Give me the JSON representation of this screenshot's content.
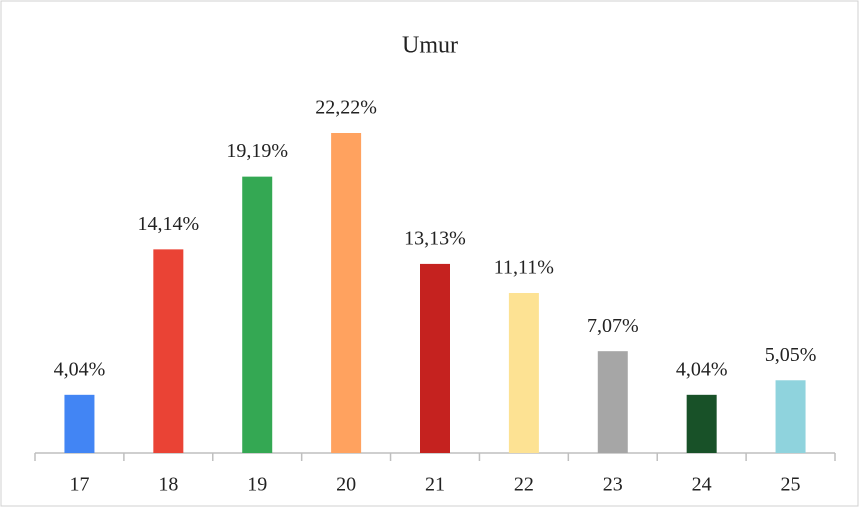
{
  "chart_data": {
    "type": "bar",
    "title": "Umur",
    "categories": [
      "17",
      "18",
      "19",
      "20",
      "21",
      "22",
      "23",
      "24",
      "25"
    ],
    "values": [
      4.04,
      14.14,
      19.19,
      22.22,
      13.13,
      11.11,
      7.07,
      4.04,
      5.05
    ],
    "value_labels": [
      "4,04%",
      "14,14%",
      "19,19%",
      "22,22%",
      "13,13%",
      "11,11%",
      "7,07%",
      "4,04%",
      "5,05%"
    ],
    "colors": [
      "#4285f4",
      "#ea4335",
      "#34a853",
      "#ffa25f",
      "#c5221f",
      "#fde293",
      "#a6a6a6",
      "#185128",
      "#8fd3dd"
    ]
  }
}
